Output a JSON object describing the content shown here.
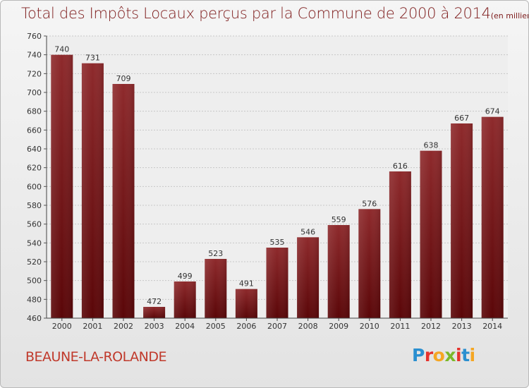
{
  "title": {
    "main": "Total des Impôts Locaux perçus par la Commune de 2000 à 2014",
    "unit": "(en milliers d'€)"
  },
  "commune": "BEAUNE-LA-ROLANDE",
  "logo": {
    "text": "Proxiti",
    "letters": [
      {
        "char": "P",
        "color": "#2a8fd0"
      },
      {
        "char": "r",
        "color": "#e5322d"
      },
      {
        "char": "o",
        "color": "#f5a623"
      },
      {
        "char": "x",
        "color": "#7ab829"
      },
      {
        "char": "i",
        "color": "#e5322d"
      },
      {
        "char": "t",
        "color": "#2a8fd0"
      },
      {
        "char": "i",
        "color": "#f5a623"
      }
    ]
  },
  "chart_data": {
    "type": "bar",
    "title": "Total des Impôts Locaux perçus par la Commune de 2000 à 2014",
    "xlabel": "",
    "ylabel": "en milliers d'€",
    "categories": [
      "2000",
      "2001",
      "2002",
      "2003",
      "2004",
      "2005",
      "2006",
      "2007",
      "2008",
      "2009",
      "2010",
      "2011",
      "2012",
      "2013",
      "2014"
    ],
    "values": [
      740,
      731,
      709,
      472,
      499,
      523,
      491,
      535,
      546,
      559,
      576,
      616,
      638,
      667,
      674
    ],
    "ylim": [
      460,
      760
    ],
    "yticks": [
      460,
      480,
      500,
      520,
      540,
      560,
      580,
      600,
      620,
      640,
      660,
      680,
      700,
      720,
      740,
      760
    ],
    "grid": true,
    "bar_color": "#7a1416"
  }
}
